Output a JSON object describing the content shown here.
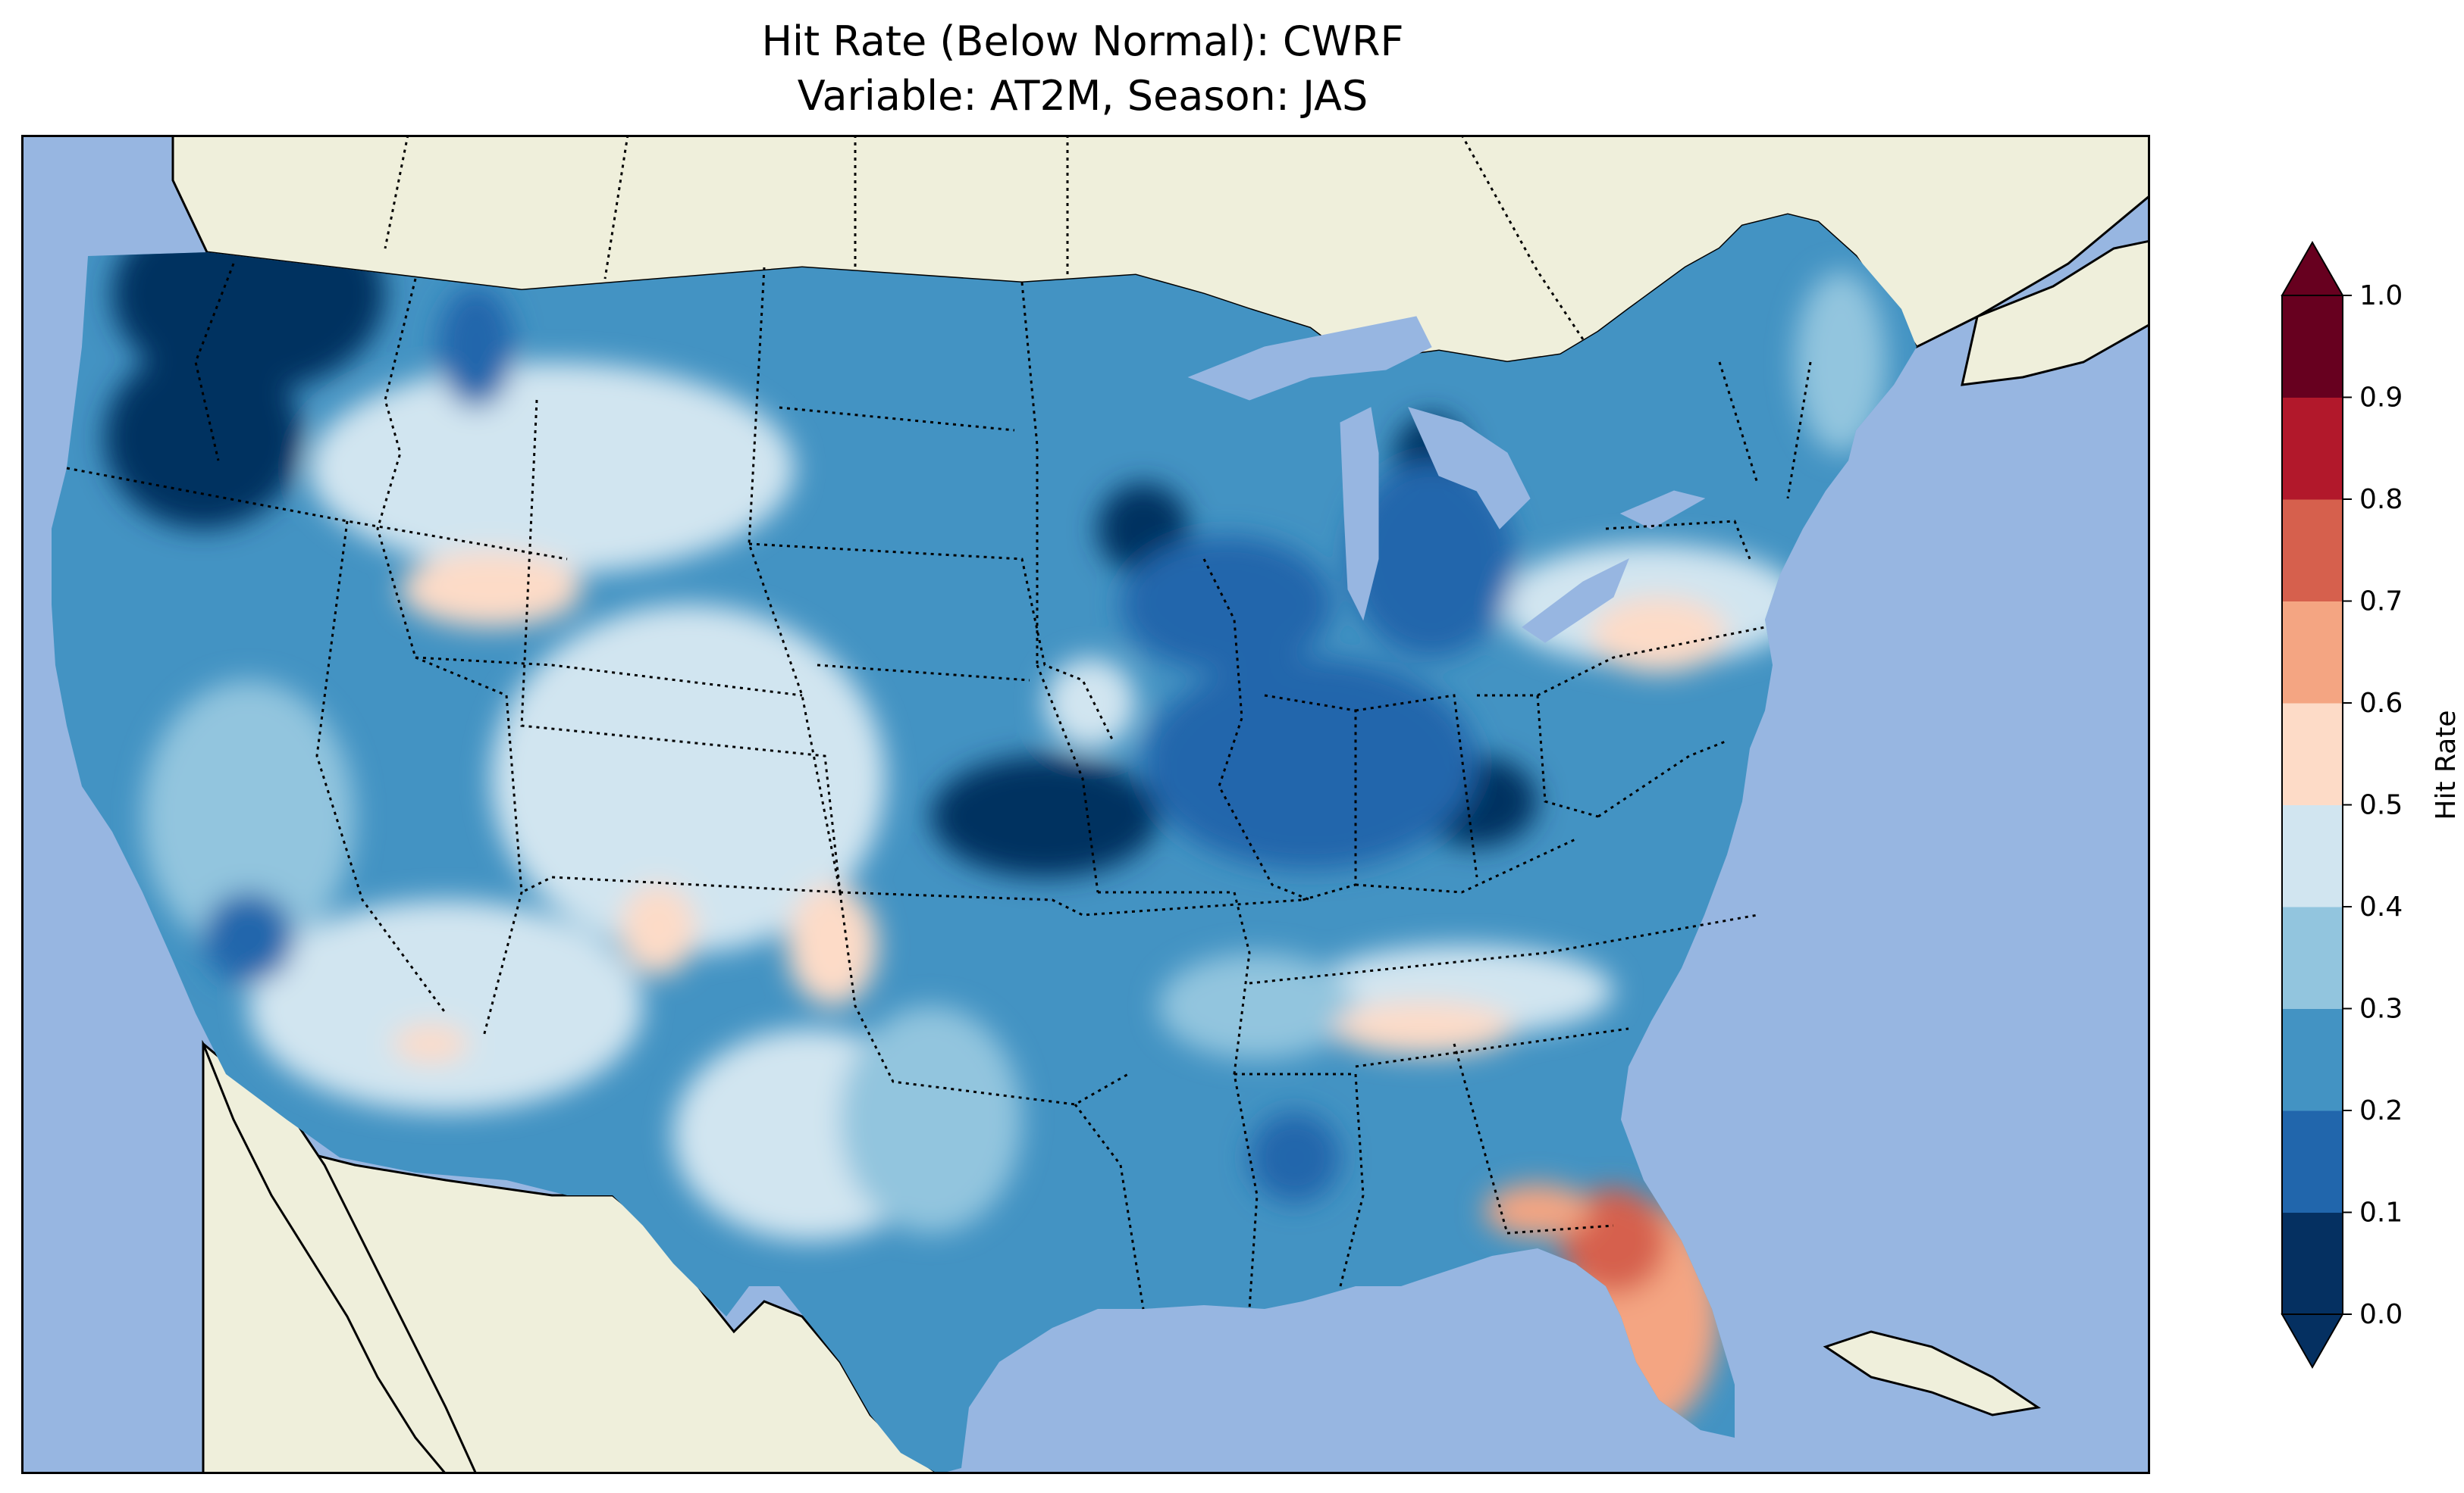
{
  "title": {
    "line1": "Hit Rate (Below Normal): CWRF",
    "line2": "Variable: AT2M, Season: JAS"
  },
  "map": {
    "region": "Contiguous United States",
    "ocean_color": "#97b6e1",
    "land_color": "#efefdb",
    "borders": "dotted state boundaries, solid coastlines"
  },
  "colorbar": {
    "label": "Hit Rate",
    "ticks": [
      "0.0",
      "0.1",
      "0.2",
      "0.3",
      "0.4",
      "0.5",
      "0.6",
      "0.7",
      "0.8",
      "0.9",
      "1.0"
    ],
    "extend": "both",
    "colors": [
      "#053061",
      "#2166ac",
      "#4393c3",
      "#92c5de",
      "#d1e5f0",
      "#fddbc7",
      "#f4a582",
      "#d6604d",
      "#b2182b",
      "#67001f"
    ],
    "under_color": "#053061",
    "over_color": "#67001f"
  }
}
